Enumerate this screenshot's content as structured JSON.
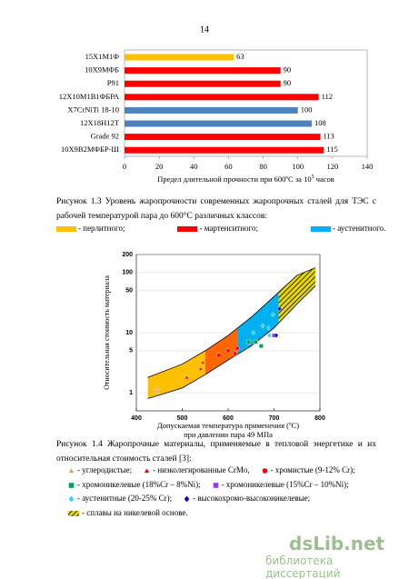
{
  "page_number": "14",
  "chart_data": [
    {
      "type": "bar",
      "orientation": "horizontal",
      "categories": [
        "15Х1М1Ф",
        "10Х9МФБ",
        "Р91",
        "12Х10М1В1ФБРА",
        "X7CrNiTi 18-10",
        "12Х18Н12Т",
        "Grade 92",
        "10Х9В2МФБР-Ш"
      ],
      "values": [
        63,
        90,
        90,
        112,
        100,
        108,
        113,
        115
      ],
      "colors": [
        "#ffc000",
        "#ff0000",
        "#ff0000",
        "#ff0000",
        "#4f81bd",
        "#4f81bd",
        "#ff0000",
        "#ff0000"
      ],
      "xlim": [
        0,
        140
      ],
      "xticks": [
        0,
        20,
        40,
        60,
        80,
        100,
        120,
        140
      ],
      "xlabel": {
        "text": "Предел длительной прочности при 600ºС за 10",
        "sup": "5",
        "tail": " часов"
      }
    },
    {
      "type": "band",
      "log_y": true,
      "x": [
        425,
        500,
        550,
        600,
        650,
        700,
        750,
        790
      ],
      "upper": [
        1.8,
        3,
        5,
        9,
        18,
        40,
        90,
        120
      ],
      "lower": [
        0.8,
        1.2,
        2,
        3.5,
        6,
        12,
        30,
        60
      ],
      "regions": [
        {
          "x0": 425,
          "x1": 550,
          "color": "#ffc000"
        },
        {
          "x0": 550,
          "x1": 620,
          "color": "#ff6600"
        },
        {
          "x0": 620,
          "x1": 710,
          "color": "#00b0f0"
        },
        {
          "x0": 710,
          "x1": 790,
          "color": "#e8d800",
          "hatch": true
        }
      ],
      "series": [
        {
          "marker": "triangle",
          "color": "#f79646",
          "x": [
            445,
            447
          ],
          "values": [
            1.2,
            1.05
          ]
        },
        {
          "marker": "triangle",
          "color": "#ff0000",
          "x": [
            510,
            540,
            545
          ],
          "values": [
            1.8,
            2.5,
            3.2
          ]
        },
        {
          "marker": "circle",
          "color": "#ff0000",
          "x": [
            580,
            600,
            615,
            620
          ],
          "values": [
            4.2,
            5,
            4.5,
            5.5
          ]
        },
        {
          "marker": "square",
          "color": "#00a050",
          "x": [
            645,
            660,
            672
          ],
          "values": [
            7,
            7,
            6
          ]
        },
        {
          "marker": "square",
          "color": "#9933ff",
          "x": [
            700
          ],
          "values": [
            9
          ]
        },
        {
          "marker": "diamond",
          "color": "#33ccff",
          "x": [
            655,
            675,
            688,
            690,
            698
          ],
          "values": [
            10,
            13,
            12,
            9,
            20
          ]
        },
        {
          "marker": "diamond",
          "color": "#0000cc",
          "x": [
            705,
            712
          ],
          "values": [
            9,
            25
          ]
        }
      ],
      "xlim": [
        400,
        800
      ],
      "ylim": [
        0.5,
        200
      ],
      "xticks": [
        400,
        500,
        600,
        700,
        800
      ],
      "yticks": [
        1,
        5,
        10,
        50,
        100,
        200
      ],
      "ylabel": "Относительная стоимость материала",
      "xlabel": [
        "Допускаемая температура применения (ºС)",
        "при давлении пара 49 МПа"
      ]
    }
  ],
  "caption_1": "Рисунок 1.3 Уровень жаропрочности современных жаропрочных сталей для ТЭС с рабочей температурой пара до 600°С различных классов:",
  "legend_1": [
    {
      "color": "#ffc000",
      "text": "- перлитного;"
    },
    {
      "color": "#ff0000",
      "text": "- мартенситного;"
    },
    {
      "color": "#00b0f0",
      "text": "- аустенитного."
    }
  ],
  "caption_2": "Рисунок 1.4 Жаропрочные материалы, применяемые в тепловой энергетике и их относительная стоимость сталей [3]:",
  "legend_2": [
    [
      {
        "marker": "triangle",
        "color": "#f79646",
        "text": "- углеродистые;"
      },
      {
        "marker": "triangle",
        "color": "#ff0000",
        "text": "- низколегированные CrMo,"
      },
      {
        "marker": "circle",
        "color": "#ff0000",
        "text": "- хромистые (9-12% Cr);"
      }
    ],
    [
      {
        "marker": "square",
        "color": "#00a050",
        "text": "- хромоникелевые (18%Cr – 8%Ni);"
      },
      {
        "marker": "square",
        "color": "#9933ff",
        "text": "- хромоникелевые (15%Cr – 10%Ni);"
      }
    ],
    [
      {
        "marker": "diamond",
        "color": "#33ccff",
        "text": "- аустенитные (20-25% Cr);"
      },
      {
        "marker": "diamond",
        "color": "#0000cc",
        "text": "- высокохромо-высоконикелевые;"
      }
    ],
    [
      {
        "marker": "hatch",
        "color": "#e8d800",
        "text": "- сплавы на никелевой основе."
      }
    ]
  ],
  "watermark": {
    "logo": "dsLib.net",
    "subtitle": "библиотека диссертаций"
  }
}
